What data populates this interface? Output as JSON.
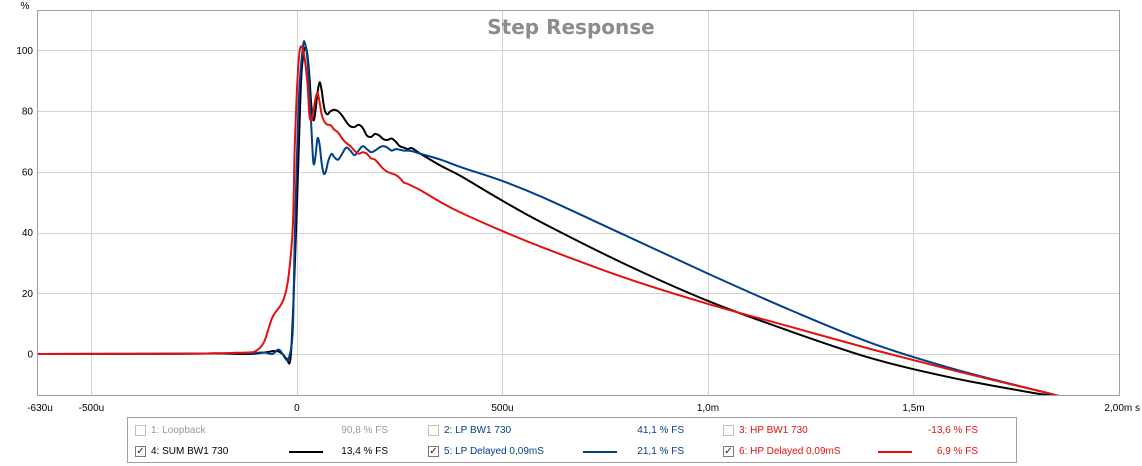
{
  "chart_data": {
    "type": "line",
    "title": "Step Response",
    "ylabel": "%",
    "xlabel": "s",
    "ylim": [
      -13.5,
      113
    ],
    "xlim": [
      -0.00063,
      0.002
    ],
    "y_ticks": [
      {
        "value": 0,
        "label": "0"
      },
      {
        "value": 20,
        "label": "20"
      },
      {
        "value": 40,
        "label": "40"
      },
      {
        "value": 60,
        "label": "60"
      },
      {
        "value": 80,
        "label": "80"
      },
      {
        "value": 100,
        "label": "100"
      }
    ],
    "x_ticks": [
      {
        "value": -0.00063,
        "label": "-630u"
      },
      {
        "value": -0.0005,
        "label": "-500u"
      },
      {
        "value": 0,
        "label": "0"
      },
      {
        "value": 0.0005,
        "label": "500u"
      },
      {
        "value": 0.001,
        "label": "1,0m"
      },
      {
        "value": 0.0015,
        "label": "1,5m"
      },
      {
        "value": 0.002,
        "label": "2,00m s"
      }
    ],
    "grid": true,
    "series": [
      {
        "name": "4: SUM BW1 730",
        "color": "#000000",
        "x": [
          -0.00063,
          -0.0003,
          -0.0002,
          -0.00012,
          -8e-05,
          -5e-05,
          -3.5e-05,
          -2.5e-05,
          -1.5e-05,
          -5e-06,
          5e-06,
          1e-05,
          1.5e-05,
          2e-05,
          2.5e-05,
          3e-05,
          3.5e-05,
          4e-05,
          4.5e-05,
          5e-05,
          5.5e-05,
          6e-05,
          6.5e-05,
          7e-05,
          7.5e-05,
          8e-05,
          8.5e-05,
          9e-05,
          0.0001,
          0.00011,
          0.00012,
          0.00013,
          0.00014,
          0.00015,
          0.00016,
          0.00017,
          0.00018,
          0.00019,
          0.0002,
          0.00021,
          0.00022,
          0.00023,
          0.00024,
          0.00025,
          0.00026,
          0.00027,
          0.00028,
          0.0003,
          0.00035,
          0.0004,
          0.0005,
          0.0006,
          0.0008,
          0.001,
          0.0012,
          0.0014,
          0.0016,
          0.0018,
          0.00186
        ],
        "y": [
          0,
          0.1,
          0.2,
          0,
          0.5,
          1,
          0,
          -1.5,
          -0.5,
          30,
          70,
          90,
          98,
          101,
          99,
          92,
          82,
          77,
          80,
          86,
          89.5,
          87,
          82,
          79.5,
          79,
          79.8,
          80.2,
          80.5,
          80,
          78.5,
          76.5,
          75,
          74.8,
          75.5,
          74.5,
          72,
          71.5,
          72.5,
          72,
          70.8,
          70.5,
          71,
          70,
          68.5,
          68,
          67.5,
          67.8,
          66,
          62,
          58.5,
          50.5,
          43,
          29.5,
          17.5,
          7.5,
          -1.5,
          -8,
          -13,
          -14
        ]
      },
      {
        "name": "5: LP Delayed 0,09mS",
        "color": "#003f8a",
        "x": [
          -0.00063,
          -0.0003,
          -0.0002,
          -0.00012,
          -8e-05,
          -6e-05,
          -4.5e-05,
          -3.5e-05,
          -2.5e-05,
          -1.8e-05,
          -1e-05,
          -5e-06,
          5e-06,
          1.5e-05,
          2e-05,
          2.5e-05,
          3e-05,
          3.5e-05,
          4e-05,
          4.5e-05,
          5e-05,
          5.5e-05,
          6e-05,
          6.5e-05,
          7e-05,
          7.5e-05,
          8e-05,
          8.5e-05,
          9e-05,
          0.0001,
          0.00011,
          0.00012,
          0.00013,
          0.00014,
          0.00015,
          0.00016,
          0.00017,
          0.00018,
          0.00019,
          0.0002,
          0.00021,
          0.00022,
          0.00023,
          0.00024,
          0.00025,
          0.00026,
          0.00027,
          0.00028,
          0.0003,
          0.00035,
          0.0004,
          0.0005,
          0.0006,
          0.0008,
          0.001,
          0.0012,
          0.0014,
          0.0016,
          0.0018,
          0.00186
        ],
        "y": [
          0,
          0.1,
          0.2,
          0.3,
          0.5,
          0,
          1.5,
          0,
          -2,
          -0.5,
          8,
          40,
          85,
          101.5,
          102,
          98,
          88,
          75,
          63,
          65,
          71,
          69,
          63,
          59.5,
          60,
          63,
          65,
          66,
          65,
          64,
          66,
          68,
          67,
          65.5,
          67,
          68.5,
          67.5,
          66.5,
          67,
          68,
          68.5,
          68,
          67,
          67.5,
          67.3,
          67,
          67,
          66.8,
          66,
          64,
          61.5,
          57,
          51.5,
          39,
          26.5,
          14.5,
          3.5,
          -5,
          -12,
          -14
        ]
      },
      {
        "name": "6: HP Delayed 0,09mS",
        "color": "#e41010",
        "x": [
          -0.00063,
          -0.0003,
          -0.0002,
          -0.00015,
          -0.00012,
          -0.0001,
          -8e-05,
          -6e-05,
          -4e-05,
          -3e-05,
          -2e-05,
          -1e-05,
          -5e-06,
          5e-06,
          1.5e-05,
          2.5e-05,
          3e-05,
          3.5e-05,
          4e-05,
          4.5e-05,
          5e-05,
          5.5e-05,
          6e-05,
          6.5e-05,
          7e-05,
          7.5e-05,
          8e-05,
          8.5e-05,
          9e-05,
          0.0001,
          0.00011,
          0.00012,
          0.00013,
          0.00014,
          0.00015,
          0.00016,
          0.00017,
          0.00018,
          0.00019,
          0.0002,
          0.00021,
          0.00022,
          0.00023,
          0.00024,
          0.00025,
          0.00026,
          0.00027,
          0.0003,
          0.00035,
          0.0004,
          0.0005,
          0.0006,
          0.0008,
          0.001,
          0.0012,
          0.0014,
          0.0016,
          0.0018,
          0.00186
        ],
        "y": [
          0,
          0.1,
          0.2,
          0.4,
          0.5,
          1,
          4,
          12,
          16,
          19,
          26,
          42,
          70,
          98,
          100,
          90,
          79,
          77,
          80,
          84,
          86,
          83,
          79,
          77,
          76,
          75.5,
          75.5,
          75,
          74,
          73,
          71,
          69.5,
          68.5,
          67,
          66,
          66.5,
          66,
          64.5,
          64,
          62.5,
          61,
          60,
          59.5,
          59,
          58,
          56.5,
          56,
          54,
          50,
          46.5,
          40.5,
          35,
          25,
          16.5,
          9,
          1.5,
          -5.5,
          -12,
          -14
        ]
      }
    ]
  },
  "legend": {
    "items": [
      {
        "label": "1: Loopback",
        "value": "90,8 % FS",
        "checked": false,
        "color": "#999999",
        "show_swatch": false,
        "swatch_color": ""
      },
      {
        "label": "2: LP BW1 730",
        "value": "41,1 % FS",
        "checked": false,
        "color": "#003f8a",
        "show_swatch": false,
        "swatch_color": ""
      },
      {
        "label": "3: HP BW1 730",
        "value": "-13,6 % FS",
        "checked": false,
        "color": "#e41010",
        "show_swatch": false,
        "swatch_color": ""
      },
      {
        "label": "4: SUM BW1 730",
        "value": "13,4 % FS",
        "checked": true,
        "color": "#000000",
        "show_swatch": true,
        "swatch_color": "#000000"
      },
      {
        "label": "5: LP Delayed 0,09mS",
        "value": "21,1 % FS",
        "checked": true,
        "color": "#003f8a",
        "show_swatch": true,
        "swatch_color": "#003f8a"
      },
      {
        "label": "6: HP Delayed 0,09mS",
        "value": "6,9 % FS",
        "checked": true,
        "color": "#e41010",
        "show_swatch": true,
        "swatch_color": "#e41010"
      }
    ],
    "check_mark": "✓"
  }
}
